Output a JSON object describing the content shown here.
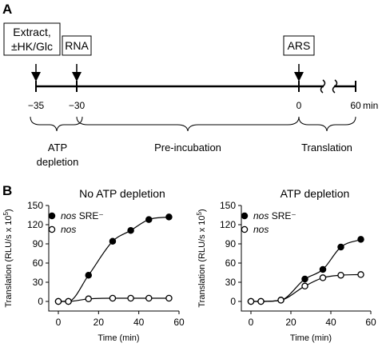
{
  "panel_a": {
    "letter": "A",
    "boxes": [
      {
        "line1": "Extract,",
        "line2": "±HK/Glc"
      },
      {
        "line1": "RNA"
      },
      {
        "line1": "ARS"
      }
    ],
    "time_ticks": [
      "−35",
      "−30",
      "0",
      "60"
    ],
    "time_unit": "min",
    "phases": [
      {
        "line1": "ATP",
        "line2": "depletion"
      },
      {
        "line1": "Pre-incubation"
      },
      {
        "line1": "Translation"
      }
    ]
  },
  "panel_b": {
    "letter": "B"
  },
  "chart_data": [
    {
      "type": "scatter",
      "title": "No ATP depletion",
      "xlabel": "Time (min)",
      "ylabel": "Translation (RLU/s x 10",
      "ylabel_sup": "5",
      "ylabel_end": ")",
      "xlim": [
        0,
        60
      ],
      "ylim": [
        0,
        150
      ],
      "xticks": [
        0,
        20,
        40,
        60
      ],
      "yticks": [
        0,
        30,
        60,
        90,
        120,
        150
      ],
      "legend_position": "top-left",
      "series": [
        {
          "name_italic": "nos",
          "name_rest": " SRE⁻",
          "marker": "filled",
          "x": [
            0,
            5,
            15,
            27,
            36,
            45,
            55
          ],
          "y": [
            0,
            0,
            41,
            94,
            111,
            128,
            132
          ]
        },
        {
          "name_italic": "nos",
          "name_rest": "",
          "marker": "open",
          "x": [
            0,
            5,
            15,
            27,
            36,
            45,
            55
          ],
          "y": [
            0,
            0,
            4,
            5,
            5,
            5,
            5
          ]
        }
      ]
    },
    {
      "type": "scatter",
      "title": "ATP depletion",
      "xlabel": "Time (min)",
      "ylabel": "Translation (RLU/s x 10",
      "ylabel_sup": "5",
      "ylabel_end": ")",
      "xlim": [
        0,
        60
      ],
      "ylim": [
        0,
        150
      ],
      "xticks": [
        0,
        20,
        40,
        60
      ],
      "yticks": [
        0,
        30,
        60,
        90,
        120,
        150
      ],
      "legend_position": "top-left",
      "series": [
        {
          "name_italic": "nos",
          "name_rest": " SRE⁻",
          "marker": "filled",
          "x": [
            0,
            5,
            15,
            27,
            36,
            45,
            55
          ],
          "y": [
            0,
            0,
            2,
            35,
            50,
            85,
            97
          ]
        },
        {
          "name_italic": "nos",
          "name_rest": "",
          "marker": "open",
          "x": [
            0,
            5,
            15,
            27,
            36,
            45,
            55
          ],
          "y": [
            0,
            0,
            2,
            24,
            37,
            41,
            42
          ]
        }
      ]
    }
  ]
}
